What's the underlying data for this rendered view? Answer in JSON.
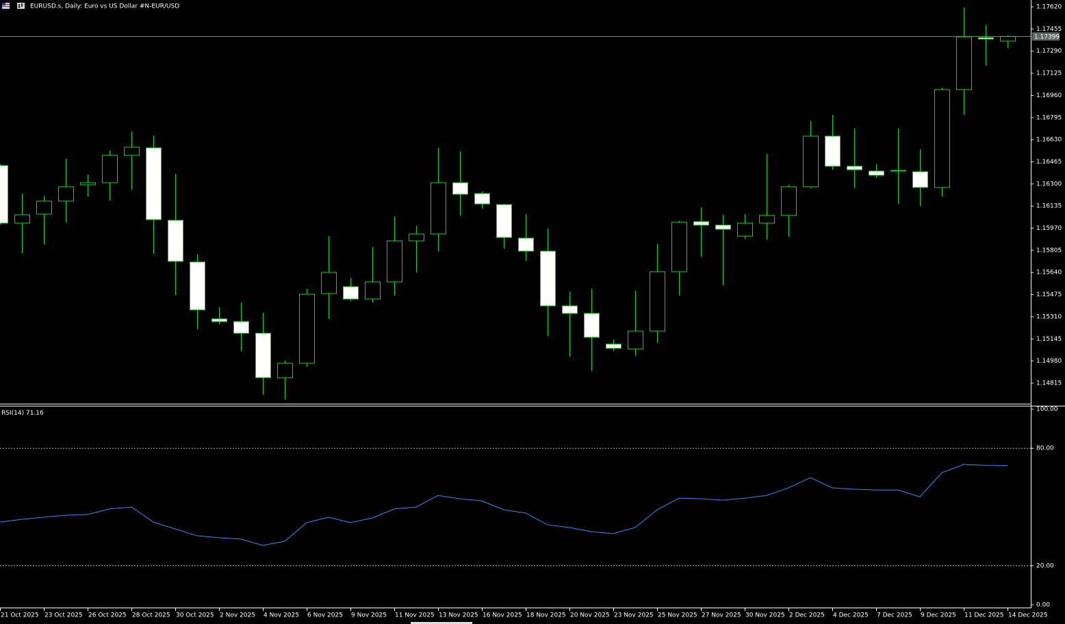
{
  "chart_data": [
    {
      "type": "candlestick",
      "title": "EURUSD.s, Daily:  Euro vs US Dollar #N-EUR/USD",
      "categories": [
        "21 Oct 2025",
        null,
        "23 Oct 2025",
        null,
        "26 Oct 2025",
        null,
        "28 Oct 2025",
        null,
        "30 Oct 2025",
        null,
        "2 Nov 2025",
        null,
        "4 Nov 2025",
        null,
        "6 Nov 2025",
        null,
        "9 Nov 2025",
        null,
        "11 Nov 2025",
        null,
        "13 Nov 2025",
        null,
        "16 Nov 2025",
        null,
        "18 Nov 2025",
        null,
        "20 Nov 2025",
        null,
        "23 Nov 2025",
        null,
        "25 Nov 2025",
        null,
        "27 Nov 2025",
        null,
        "30 Nov 2025",
        null,
        "2 Dec 2025",
        null,
        "4 Dec 2025",
        null,
        "7 Dec 2025",
        null,
        "9 Dec 2025",
        null,
        "11 Dec 2025",
        null,
        "14 Dec 2025"
      ],
      "open": [
        1.16437,
        1.16008,
        1.16075,
        1.16172,
        1.16294,
        1.16309,
        1.16513,
        1.16569,
        1.16029,
        1.15718,
        1.15294,
        1.15274,
        1.15187,
        1.14856,
        1.14963,
        1.15483,
        1.15534,
        1.15442,
        1.1557,
        1.15876,
        1.15927,
        1.16309,
        1.16228,
        1.16146,
        1.15896,
        1.15799,
        1.15391,
        1.15335,
        1.15106,
        1.1507,
        1.15203,
        1.15646,
        1.16019,
        1.15993,
        1.15911,
        1.16008,
        1.16065,
        1.16279,
        1.16656,
        1.16432,
        1.16396,
        1.16401,
        1.16391,
        1.16274,
        1.17003,
        1.1739,
        1.17365
      ],
      "high": [
        1.16447,
        1.16228,
        1.16212,
        1.16488,
        1.1637,
        1.16549,
        1.16692,
        1.16661,
        1.16376,
        1.15774,
        1.15381,
        1.15417,
        1.1534,
        1.14983,
        1.15519,
        1.15911,
        1.156,
        1.1583,
        1.16059,
        1.15988,
        1.16569,
        1.16544,
        1.16243,
        1.16151,
        1.16075,
        1.15968,
        1.15498,
        1.15519,
        1.15141,
        1.15503,
        1.15855,
        1.16024,
        1.16126,
        1.1607,
        1.16075,
        1.16523,
        1.16294,
        1.16768,
        1.16814,
        1.16712,
        1.16447,
        1.16712,
        1.16559,
        1.17018,
        1.17615,
        1.17487,
        1.17406
      ],
      "low": [
        1.15998,
        1.15784,
        1.1585,
        1.16014,
        1.16207,
        1.16177,
        1.16258,
        1.15779,
        1.15473,
        1.15218,
        1.15254,
        1.15055,
        1.14729,
        1.14693,
        1.14937,
        1.15294,
        1.15427,
        1.15417,
        1.15468,
        1.15641,
        1.15799,
        1.16065,
        1.16116,
        1.15819,
        1.15728,
        1.15167,
        1.15014,
        1.14907,
        1.15055,
        1.15019,
        1.15116,
        1.15468,
        1.15758,
        1.15544,
        1.15891,
        1.15886,
        1.15906,
        1.16269,
        1.16406,
        1.16269,
        1.1635,
        1.16151,
        1.16136,
        1.16207,
        1.16814,
        1.17181,
        1.17314
      ],
      "close": [
        1.16008,
        1.1607,
        1.16172,
        1.16279,
        1.16309,
        1.16513,
        1.16574,
        1.16034,
        1.15723,
        1.15361,
        1.15274,
        1.15187,
        1.14856,
        1.14963,
        1.15478,
        1.15641,
        1.15442,
        1.1557,
        1.15876,
        1.15927,
        1.16309,
        1.16223,
        1.16151,
        1.15901,
        1.15799,
        1.15391,
        1.15335,
        1.15157,
        1.15075,
        1.15203,
        1.15646,
        1.16014,
        1.15993,
        1.15962,
        1.16008,
        1.16065,
        1.16279,
        1.16656,
        1.16432,
        1.16406,
        1.16365,
        1.16396,
        1.16274,
        1.17003,
        1.17396,
        1.1738,
        1.17399
      ],
      "last_price": 1.17399,
      "ylim": [
        1.14662,
        1.17671
      ],
      "yticks": [
        {
          "value": 1.1762,
          "label": "1.17620"
        },
        1.17455,
        {
          "value": 1.1729,
          "label": "1.17290"
        },
        1.17125,
        {
          "value": 1.1696,
          "label": "1.16960"
        },
        1.16795,
        {
          "value": 1.1663,
          "label": "1.16630"
        },
        1.16465,
        {
          "value": 1.163,
          "label": "1.16300"
        },
        1.16135,
        {
          "value": 1.1597,
          "label": "1.15970"
        },
        1.15805,
        {
          "value": 1.1564,
          "label": "1.15640"
        },
        1.15475,
        {
          "value": 1.1531,
          "label": "1.15310"
        },
        1.15145,
        {
          "value": 1.1498,
          "label": "1.14980"
        },
        1.14815
      ],
      "up_color": "#000000",
      "down_color": "#ffffff",
      "outline_color": "#00e000",
      "last_price_color": "#6f9a8c"
    },
    {
      "type": "line",
      "title": "RSI(14)",
      "color": "#2e8bff",
      "values": [
        42.3,
        43.7,
        44.8,
        45.8,
        46.2,
        49.0,
        50.0,
        42.3,
        38.8,
        35.3,
        34.3,
        33.6,
        30.4,
        32.5,
        42.0,
        44.8,
        42.0,
        44.4,
        49.0,
        50.0,
        55.9,
        54.2,
        53.1,
        48.6,
        46.9,
        40.9,
        39.5,
        37.4,
        36.4,
        39.5,
        48.6,
        54.5,
        54.2,
        53.5,
        54.5,
        55.9,
        59.8,
        65.0,
        59.8,
        59.1,
        58.7,
        58.7,
        55.2,
        67.5,
        71.7,
        71.3,
        71.16
      ],
      "ylim": [
        0,
        100
      ],
      "yticks": [
        {
          "value": 100,
          "label": "100.00"
        },
        {
          "value": 80,
          "label": "80.00"
        },
        {
          "value": 20,
          "label": "20.00"
        },
        {
          "value": 0,
          "label": "0.00"
        }
      ]
    }
  ]
}
